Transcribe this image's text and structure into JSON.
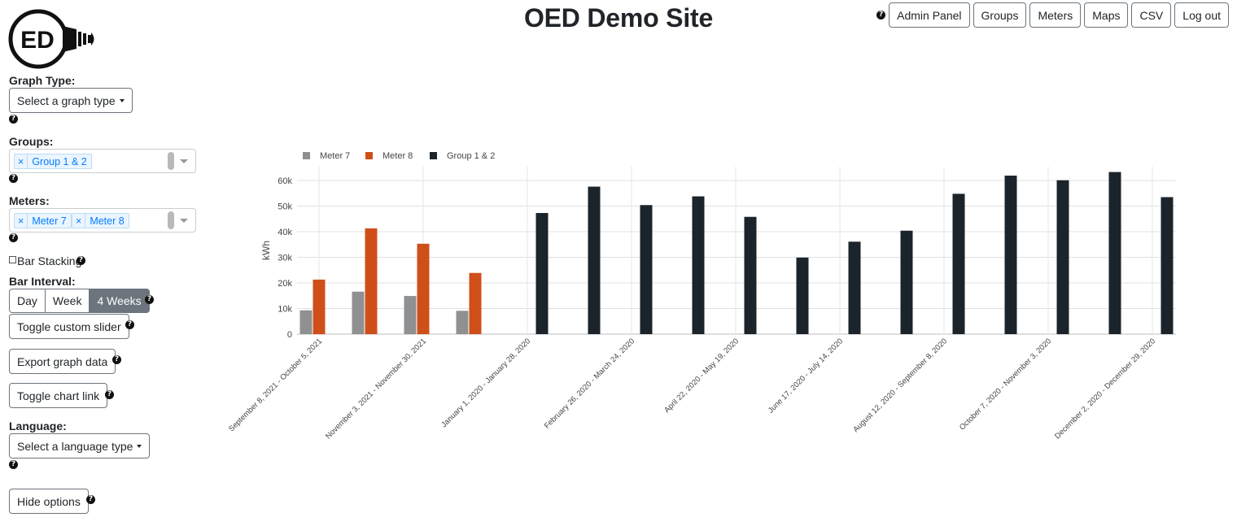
{
  "header": {
    "title": "OED Demo Site",
    "logo_text": "ED",
    "nav": [
      "Admin Panel",
      "Groups",
      "Meters",
      "Maps",
      "CSV",
      "Log out"
    ]
  },
  "sidebar": {
    "graph_type_label": "Graph Type:",
    "graph_type_select": "Select a graph type",
    "groups_label": "Groups:",
    "groups_selected": [
      "Group 1 & 2"
    ],
    "meters_label": "Meters:",
    "meters_selected": [
      "Meter 7",
      "Meter 8"
    ],
    "chip_remove": "×",
    "bar_stacking_label": "Bar Stacking",
    "bar_stacking_checked": false,
    "bar_interval_label": "Bar Interval:",
    "bar_interval_options": [
      "Day",
      "Week",
      "4 Weeks"
    ],
    "bar_interval_selected": "4 Weeks",
    "toggle_slider": "Toggle custom slider",
    "export_graph": "Export graph data",
    "toggle_chart_link": "Toggle chart link",
    "language_label": "Language:",
    "language_select": "Select a language type",
    "hide_options": "Hide options"
  },
  "colors": {
    "meter7": "#8e9091",
    "meter8": "#cf4f1a",
    "group": "#1b232b",
    "button_border": "#6c757d",
    "chip_text": "#007eff"
  },
  "chart_data": {
    "type": "bar",
    "ylabel": "kWh",
    "ylim": [
      0,
      60000
    ],
    "yticks": [
      "0",
      "10k",
      "20k",
      "30k",
      "40k",
      "50k",
      "60k"
    ],
    "legend": [
      "Meter 7",
      "Meter 8",
      "Group 1 & 2"
    ],
    "xtick_labels": [
      "September 8, 2021 - October 5, 2021",
      "November 3, 2021 - November 30, 2021",
      "January 1, 2020 - January 28, 2020",
      "February 26, 2020 - March 24, 2020",
      "April 22, 2020 - May 19, 2020",
      "June 17, 2020 - July 14, 2020",
      "August 12, 2020 - September 8, 2020",
      "October 7, 2020 - November 3, 2020",
      "December 2, 2020 - December 29, 2020"
    ],
    "series": [
      {
        "name": "Meter 7",
        "values": [
          9300,
          16600,
          14900,
          9100
        ]
      },
      {
        "name": "Meter 8",
        "values": [
          21300,
          41300,
          35300,
          23900
        ]
      },
      {
        "name": "Group 1 & 2",
        "values": [
          47300,
          57600,
          50400,
          53800,
          45800,
          29900,
          36100,
          40400,
          54800,
          61900,
          60100,
          63300,
          53500
        ]
      }
    ]
  }
}
